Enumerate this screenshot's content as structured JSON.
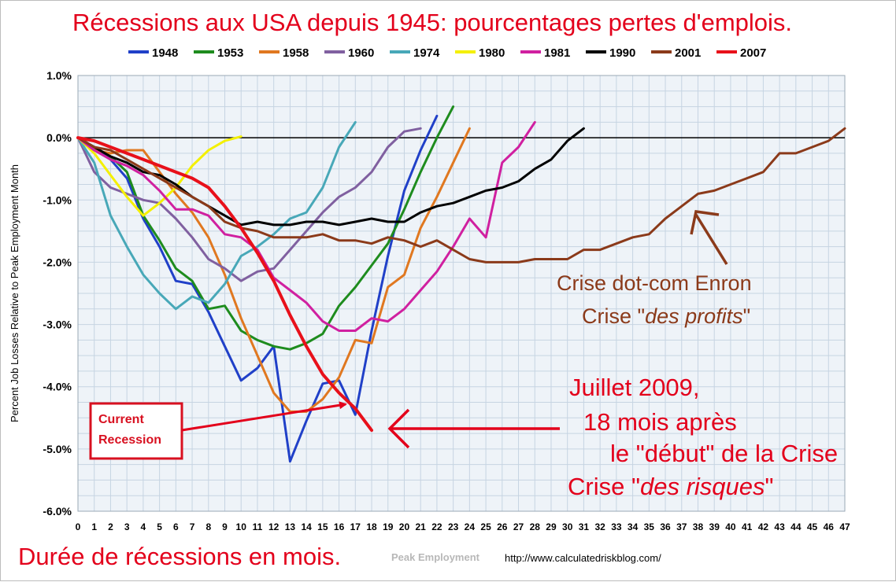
{
  "title": "Récessions aux USA depuis 1945: pourcentages pertes d'emplois.",
  "bottom_caption": "Durée de récessions en mois.",
  "xlabel_hidden": "Peak Employment",
  "url": "http://www.calculatedriskblog.com/",
  "colors": {
    "title": "#e3001b",
    "annotation_red": "#e3001b",
    "annotation_brown": "#8b3a1a",
    "grid": "#c6d4e2",
    "plot_bg": "#eef3f8"
  },
  "annotations": {
    "current": [
      "Current",
      "Recession"
    ],
    "dotcom_line1": "Crise dot-com Enron",
    "dotcom_line2_pre": "Crise \"",
    "dotcom_line2_em": "des profits",
    "dotcom_line2_post": "\"",
    "july_line1": "Juillet 2009,",
    "july_line2": "18 mois après",
    "july_line3": "le \"début\" de la Crise",
    "july_line4_pre": "Crise \"",
    "july_line4_em": "des risques",
    "july_line4_post": "\""
  },
  "chart_data": {
    "type": "line",
    "xlabel": "",
    "ylabel": "Percent Job Losses Relative to Peak Employment Month",
    "xlim": [
      0,
      47
    ],
    "ylim": [
      -6.0,
      1.0
    ],
    "yticks": [
      "1.0%",
      "0.0%",
      "-1.0%",
      "-2.0%",
      "-3.0%",
      "-4.0%",
      "-5.0%",
      "-6.0%"
    ],
    "xticks": [
      "0",
      "1",
      "2",
      "3",
      "4",
      "5",
      "6",
      "7",
      "8",
      "9",
      "10",
      "11",
      "12",
      "13",
      "14",
      "15",
      "16",
      "17",
      "18",
      "19",
      "20",
      "21",
      "22",
      "23",
      "24",
      "25",
      "26",
      "27",
      "28",
      "29",
      "30",
      "31",
      "32",
      "33",
      "34",
      "35",
      "36",
      "37",
      "38",
      "39",
      "40",
      "41",
      "42",
      "43",
      "44",
      "45",
      "46",
      "47"
    ],
    "grid": true,
    "legend_position": "top",
    "series": [
      {
        "name": "1948",
        "color": "#2040c8",
        "width": 3,
        "values": [
          0,
          -0.15,
          -0.35,
          -0.65,
          -1.3,
          -1.75,
          -2.3,
          -2.35,
          -2.8,
          -3.35,
          -3.9,
          -3.7,
          -3.35,
          -5.2,
          -4.55,
          -3.95,
          -3.9,
          -4.45,
          -3.1,
          -1.9,
          -0.85,
          -0.2,
          0.35
        ]
      },
      {
        "name": "1953",
        "color": "#1e8c1e",
        "width": 3,
        "values": [
          0,
          -0.15,
          -0.3,
          -0.55,
          -1.25,
          -1.65,
          -2.1,
          -2.3,
          -2.75,
          -2.7,
          -3.1,
          -3.25,
          -3.35,
          -3.4,
          -3.3,
          -3.15,
          -2.7,
          -2.4,
          -2.05,
          -1.7,
          -1.15,
          -0.55,
          0.0,
          0.5
        ]
      },
      {
        "name": "1958",
        "color": "#e07820",
        "width": 3,
        "values": [
          0,
          -0.2,
          -0.25,
          -0.2,
          -0.2,
          -0.55,
          -0.9,
          -1.2,
          -1.6,
          -2.2,
          -2.9,
          -3.5,
          -4.1,
          -4.4,
          -4.4,
          -4.2,
          -3.85,
          -3.25,
          -3.3,
          -2.4,
          -2.2,
          -1.45,
          -0.95,
          -0.4,
          0.15
        ]
      },
      {
        "name": "1960",
        "color": "#8060a0",
        "width": 3,
        "values": [
          0,
          -0.55,
          -0.8,
          -0.9,
          -1.0,
          -1.05,
          -1.3,
          -1.6,
          -1.95,
          -2.1,
          -2.3,
          -2.15,
          -2.1,
          -1.8,
          -1.5,
          -1.2,
          -0.95,
          -0.8,
          -0.55,
          -0.15,
          0.1,
          0.15
        ]
      },
      {
        "name": "1974",
        "color": "#48a8b8",
        "width": 3,
        "values": [
          0,
          -0.4,
          -1.25,
          -1.75,
          -2.2,
          -2.5,
          -2.75,
          -2.55,
          -2.65,
          -2.35,
          -1.9,
          -1.75,
          -1.55,
          -1.3,
          -1.2,
          -0.8,
          -0.15,
          0.25
        ]
      },
      {
        "name": "1980",
        "color": "#f4f000",
        "width": 3,
        "values": [
          0,
          -0.25,
          -0.6,
          -0.95,
          -1.25,
          -1.05,
          -0.8,
          -0.45,
          -0.2,
          -0.05,
          0.02
        ]
      },
      {
        "name": "1981",
        "color": "#d020a0",
        "width": 3,
        "values": [
          0,
          -0.2,
          -0.35,
          -0.45,
          -0.6,
          -0.85,
          -1.15,
          -1.15,
          -1.25,
          -1.55,
          -1.6,
          -1.8,
          -2.25,
          -2.45,
          -2.65,
          -2.95,
          -3.1,
          -3.1,
          -2.9,
          -2.95,
          -2.75,
          -2.45,
          -2.15,
          -1.75,
          -1.3,
          -1.6,
          -0.4,
          -0.15,
          0.25
        ]
      },
      {
        "name": "1990",
        "color": "#000000",
        "width": 3,
        "values": [
          0,
          -0.15,
          -0.3,
          -0.4,
          -0.55,
          -0.6,
          -0.75,
          -0.95,
          -1.1,
          -1.25,
          -1.4,
          -1.35,
          -1.4,
          -1.4,
          -1.35,
          -1.35,
          -1.4,
          -1.35,
          -1.3,
          -1.35,
          -1.35,
          -1.2,
          -1.1,
          -1.05,
          -0.95,
          -0.85,
          -0.8,
          -0.7,
          -0.5,
          -0.35,
          -0.05,
          0.15
        ]
      },
      {
        "name": "2001",
        "color": "#8b3a1a",
        "width": 3,
        "values": [
          0,
          -0.15,
          -0.2,
          -0.35,
          -0.5,
          -0.65,
          -0.8,
          -0.95,
          -1.1,
          -1.35,
          -1.45,
          -1.5,
          -1.6,
          -1.6,
          -1.6,
          -1.55,
          -1.65,
          -1.65,
          -1.7,
          -1.6,
          -1.65,
          -1.75,
          -1.65,
          -1.8,
          -1.95,
          -2.0,
          -2.0,
          -2.0,
          -1.95,
          -1.95,
          -1.95,
          -1.8,
          -1.8,
          -1.7,
          -1.6,
          -1.55,
          -1.3,
          -1.1,
          -0.9,
          -0.85,
          -0.75,
          -0.65,
          -0.55,
          -0.25,
          -0.25,
          -0.15,
          -0.05,
          0.15
        ]
      },
      {
        "name": "2007",
        "color": "#e8101a",
        "width": 4,
        "values": [
          0,
          -0.05,
          -0.15,
          -0.25,
          -0.35,
          -0.45,
          -0.55,
          -0.65,
          -0.8,
          -1.1,
          -1.45,
          -1.85,
          -2.3,
          -2.85,
          -3.35,
          -3.8,
          -4.1,
          -4.35,
          -4.7
        ]
      }
    ]
  }
}
